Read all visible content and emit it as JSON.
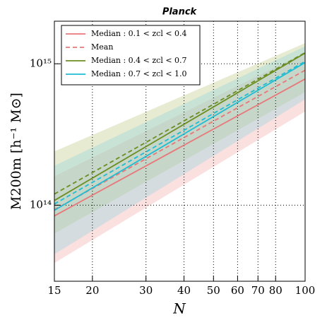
{
  "chart_data": {
    "type": "line",
    "title": "Planck",
    "x_label": "N",
    "y_label": "M200m [h⁻¹ M⊙]",
    "log_x": true,
    "log_y": true,
    "grid": true,
    "legend": "upper left",
    "xlim": [
      15,
      100
    ],
    "ylim": [
      29000000000000.0,
      2000000000000000.0
    ],
    "xticks": [
      15,
      20,
      30,
      40,
      50,
      60,
      70,
      80,
      100
    ],
    "yticks": [
      {
        "value": 100000000000000.0,
        "label": "10¹⁴"
      },
      {
        "value": 1000000000000000.0,
        "label": "10¹⁵"
      }
    ],
    "bands": [
      {
        "color": "#f4a6a6",
        "x": [
          15,
          100
        ],
        "lower": [
          39000000000000.0,
          460000000000000.0
        ],
        "upper": [
          160000000000000.0,
          1200000000000000.0
        ]
      },
      {
        "color": "#b7c77a",
        "x": [
          15,
          100
        ],
        "lower": [
          63000000000000.0,
          630000000000000.0
        ],
        "upper": [
          240000000000000.0,
          1400000000000000.0
        ]
      },
      {
        "color": "#8fd4dd",
        "x": [
          15,
          100
        ],
        "lower": [
          45000000000000.0,
          560000000000000.0
        ],
        "upper": [
          190000000000000.0,
          1330000000000000.0
        ]
      }
    ],
    "series": [
      {
        "name": "Median : 0.1 < zcl < 0.4",
        "color": "#e8777a",
        "dashed": false,
        "x": [
          15,
          100
        ],
        "values": [
          84000000000000.0,
          780000000000000.0
        ]
      },
      {
        "name": "Mean",
        "color": "#e8777a",
        "dashed": true,
        "x": [
          15,
          100
        ],
        "values": [
          93000000000000.0,
          900000000000000.0
        ]
      },
      {
        "name": "Median : 0.4 < zcl < 0.7",
        "color": "#6b8e23",
        "dashed": false,
        "x": [
          15,
          100
        ],
        "values": [
          108000000000000.0,
          1190000000000000.0
        ]
      },
      {
        "name": "Median : 0.7 < zcl < 1.0",
        "color": "#1fbcd2",
        "dashed": false,
        "x": [
          15,
          100
        ],
        "values": [
          92000000000000.0,
          1020000000000000.0
        ]
      },
      {
        "color": "#6b8e23",
        "dashed": true,
        "x": [
          15,
          100
        ],
        "values": [
          120000000000000.0,
          1200000000000000.0
        ]
      },
      {
        "color": "#1fbcd2",
        "dashed": true,
        "x": [
          15,
          100
        ],
        "values": [
          102000000000000.0,
          1040000000000000.0
        ]
      }
    ]
  }
}
